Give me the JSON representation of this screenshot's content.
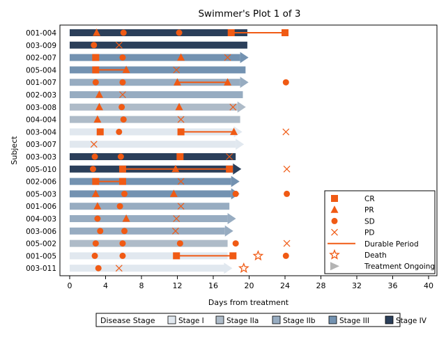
{
  "chart_data": {
    "type": "swimmer",
    "title": "Swimmer's Plot 1 of 3",
    "xlabel": "Days from treatment",
    "ylabel": "Subject",
    "xlim": [
      0,
      40
    ],
    "xticks": [
      0,
      4,
      8,
      12,
      16,
      20,
      24,
      28,
      32,
      36,
      40
    ],
    "stage_colors": {
      "Stage I": "#e1e8ef",
      "Stage IIa": "#aebbc8",
      "Stage IIb": "#97acc1",
      "Stage III": "#7392b1",
      "Stage IV": "#2b3f5a"
    },
    "marker_color": "#f05a14",
    "ongoing_color": "#b4b4b4",
    "subjects": [
      {
        "id": "001-004",
        "stage": "Stage IV",
        "end": 19.8,
        "ongoing": false,
        "events": [
          {
            "type": "PR",
            "x": 3.0
          },
          {
            "type": "SD",
            "x": 6.0
          },
          {
            "type": "SD",
            "x": 12.2
          },
          {
            "type": "CR",
            "x": 18.0
          },
          {
            "type": "CR",
            "x": 24.0
          }
        ],
        "durable": [
          18.0,
          24.0
        ]
      },
      {
        "id": "003-009",
        "stage": "Stage IV",
        "end": 19.8,
        "ongoing": false,
        "events": [
          {
            "type": "SD",
            "x": 2.7
          },
          {
            "type": "PD",
            "x": 5.5
          }
        ],
        "durable": null
      },
      {
        "id": "002-007",
        "stage": "Stage III",
        "end": 19.0,
        "ongoing": true,
        "events": [
          {
            "type": "CR",
            "x": 2.9
          },
          {
            "type": "SD",
            "x": 5.9
          },
          {
            "type": "PR",
            "x": 12.4
          },
          {
            "type": "PD",
            "x": 17.6
          }
        ],
        "durable": null
      },
      {
        "id": "005-004",
        "stage": "Stage III",
        "end": 19.6,
        "ongoing": false,
        "events": [
          {
            "type": "CR",
            "x": 2.9
          },
          {
            "type": "PR",
            "x": 6.3
          },
          {
            "type": "PD",
            "x": 11.9
          }
        ],
        "durable": [
          2.9,
          6.3
        ]
      },
      {
        "id": "001-007",
        "stage": "Stage IIb",
        "end": 19.0,
        "ongoing": true,
        "events": [
          {
            "type": "SD",
            "x": 2.9
          },
          {
            "type": "SD",
            "x": 5.9
          },
          {
            "type": "PR",
            "x": 12.0
          },
          {
            "type": "PR",
            "x": 17.6
          },
          {
            "type": "SD",
            "x": 24.1
          }
        ],
        "durable": [
          12.0,
          17.6
        ]
      },
      {
        "id": "002-003",
        "stage": "Stage IIb",
        "end": 19.3,
        "ongoing": false,
        "events": [
          {
            "type": "PR",
            "x": 3.3
          },
          {
            "type": "PD",
            "x": 5.9
          }
        ],
        "durable": null
      },
      {
        "id": "003-008",
        "stage": "Stage IIa",
        "end": 18.7,
        "ongoing": true,
        "events": [
          {
            "type": "PR",
            "x": 3.3
          },
          {
            "type": "SD",
            "x": 5.8
          },
          {
            "type": "PR",
            "x": 12.2
          },
          {
            "type": "PD",
            "x": 18.2
          }
        ],
        "durable": null
      },
      {
        "id": "004-004",
        "stage": "Stage IIa",
        "end": 19.0,
        "ongoing": false,
        "events": [
          {
            "type": "PR",
            "x": 3.1
          },
          {
            "type": "SD",
            "x": 6.0
          },
          {
            "type": "PD",
            "x": 12.4
          }
        ],
        "durable": null
      },
      {
        "id": "003-004",
        "stage": "Stage I",
        "end": 18.3,
        "ongoing": true,
        "events": [
          {
            "type": "CR",
            "x": 3.4
          },
          {
            "type": "SD",
            "x": 5.5
          },
          {
            "type": "CR",
            "x": 12.4
          },
          {
            "type": "PR",
            "x": 18.3
          },
          {
            "type": "PD",
            "x": 24.1
          }
        ],
        "durable": [
          12.4,
          18.3
        ]
      },
      {
        "id": "003-007",
        "stage": "Stage I",
        "end": 18.5,
        "ongoing": true,
        "events": [
          {
            "type": "PD",
            "x": 2.7
          }
        ],
        "durable": null
      },
      {
        "id": "003-003",
        "stage": "Stage IV",
        "end": 18.5,
        "ongoing": false,
        "events": [
          {
            "type": "SD",
            "x": 2.8
          },
          {
            "type": "SD",
            "x": 5.7
          },
          {
            "type": "CR",
            "x": 12.3
          },
          {
            "type": "PD",
            "x": 17.8
          }
        ],
        "durable": null
      },
      {
        "id": "005-010",
        "stage": "Stage IV",
        "end": 18.2,
        "ongoing": true,
        "events": [
          {
            "type": "SD",
            "x": 2.6
          },
          {
            "type": "CR",
            "x": 5.9
          },
          {
            "type": "PR",
            "x": 11.8
          },
          {
            "type": "CR",
            "x": 17.8
          },
          {
            "type": "PD",
            "x": 24.2
          }
        ],
        "durable": [
          5.9,
          17.8
        ]
      },
      {
        "id": "002-006",
        "stage": "Stage III",
        "end": 18.0,
        "ongoing": true,
        "events": [
          {
            "type": "CR",
            "x": 2.9
          },
          {
            "type": "CR",
            "x": 5.9
          },
          {
            "type": "PD",
            "x": 12.4
          }
        ],
        "durable": [
          2.9,
          5.9
        ]
      },
      {
        "id": "005-003",
        "stage": "Stage III",
        "end": 18.0,
        "ongoing": true,
        "events": [
          {
            "type": "PR",
            "x": 2.9
          },
          {
            "type": "SD",
            "x": 6.1
          },
          {
            "type": "PR",
            "x": 11.6
          },
          {
            "type": "SD",
            "x": 18.5
          },
          {
            "type": "SD",
            "x": 24.2
          }
        ],
        "durable": null
      },
      {
        "id": "001-006",
        "stage": "Stage IIb",
        "end": 17.8,
        "ongoing": false,
        "events": [
          {
            "type": "PR",
            "x": 3.1
          },
          {
            "type": "SD",
            "x": 5.6
          },
          {
            "type": "PD",
            "x": 12.4
          }
        ],
        "durable": null
      },
      {
        "id": "004-003",
        "stage": "Stage IIb",
        "end": 17.6,
        "ongoing": true,
        "events": [
          {
            "type": "SD",
            "x": 3.1
          },
          {
            "type": "PR",
            "x": 6.3
          },
          {
            "type": "PD",
            "x": 11.9
          }
        ],
        "durable": null
      },
      {
        "id": "003-006",
        "stage": "Stage IIb",
        "end": 17.3,
        "ongoing": true,
        "events": [
          {
            "type": "SD",
            "x": 3.4
          },
          {
            "type": "SD",
            "x": 6.1
          },
          {
            "type": "PD",
            "x": 11.8
          }
        ],
        "durable": null
      },
      {
        "id": "005-002",
        "stage": "Stage IIa",
        "end": 17.6,
        "ongoing": false,
        "events": [
          {
            "type": "SD",
            "x": 2.9
          },
          {
            "type": "SD",
            "x": 5.9
          },
          {
            "type": "SD",
            "x": 12.3
          },
          {
            "type": "SD",
            "x": 18.5
          },
          {
            "type": "PD",
            "x": 24.2
          }
        ],
        "durable": null
      },
      {
        "id": "001-005",
        "stage": "Stage I",
        "end": 17.6,
        "ongoing": false,
        "events": [
          {
            "type": "SD",
            "x": 2.8
          },
          {
            "type": "SD",
            "x": 5.9
          },
          {
            "type": "CR",
            "x": 11.9
          },
          {
            "type": "CR",
            "x": 18.2
          },
          {
            "type": "Death",
            "x": 21.0
          },
          {
            "type": "SD",
            "x": 24.1
          }
        ],
        "durable": [
          11.9,
          18.2
        ]
      },
      {
        "id": "003-011",
        "stage": "Stage I",
        "end": 17.2,
        "ongoing": true,
        "events": [
          {
            "type": "SD",
            "x": 3.2
          },
          {
            "type": "PD",
            "x": 5.5
          },
          {
            "type": "Death",
            "x": 19.4
          }
        ],
        "durable": null
      }
    ],
    "legend": {
      "position": "bottom-right",
      "entries": [
        {
          "key": "CR",
          "label": "CR"
        },
        {
          "key": "PR",
          "label": "PR"
        },
        {
          "key": "SD",
          "label": "SD"
        },
        {
          "key": "PD",
          "label": "PD"
        },
        {
          "key": "Durable",
          "label": "Durable Period"
        },
        {
          "key": "Death",
          "label": "Death"
        },
        {
          "key": "Ongoing",
          "label": "Treatment Ongoing"
        }
      ]
    },
    "stage_legend": {
      "title": "Disease Stage",
      "items": [
        "Stage I",
        "Stage IIa",
        "Stage IIb",
        "Stage III",
        "Stage IV"
      ]
    }
  }
}
